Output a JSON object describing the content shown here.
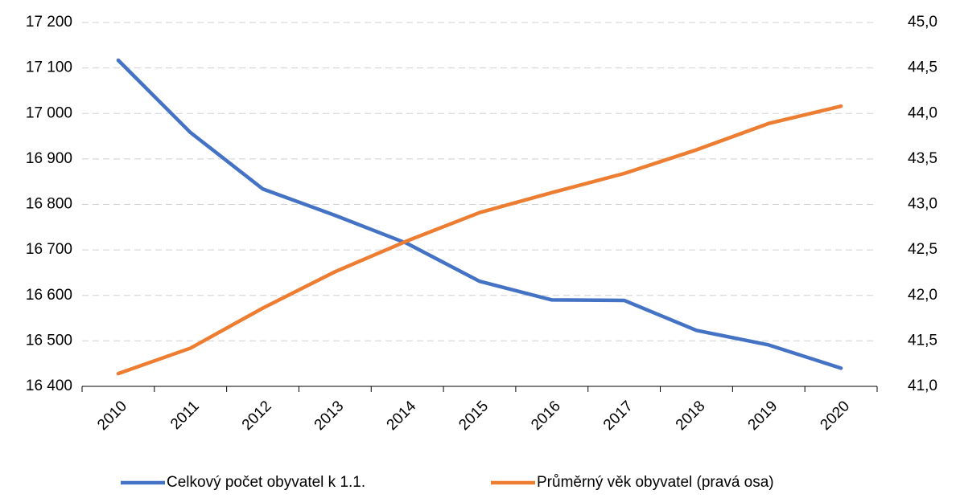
{
  "chart_data": {
    "type": "line",
    "categories": [
      "2010",
      "2011",
      "2012",
      "2013",
      "2014",
      "2015",
      "2016",
      "2017",
      "2018",
      "2019",
      "2020"
    ],
    "series": [
      {
        "name": "Celkový počet obyvatel k 1.1.",
        "color": "#4472c4",
        "values": [
          17117,
          16958,
          16834,
          16776,
          16714,
          16631,
          16590,
          16589,
          16523,
          16491,
          16440
        ]
      },
      {
        "name": "Průměrný věk obyvatel (pravá osa)",
        "color": "#ed7d31",
        "axis": "y2",
        "values": [
          41.14,
          41.42,
          41.86,
          42.26,
          42.6,
          42.91,
          43.13,
          43.34,
          43.6,
          43.89,
          44.08
        ]
      }
    ],
    "ylim": [
      16400,
      17200
    ],
    "yticks": [
      {
        "value": 16400,
        "label": "16 400"
      },
      {
        "value": 16500,
        "label": "16 500"
      },
      {
        "value": 16600,
        "label": "16 600"
      },
      {
        "value": 16700,
        "label": "16 700"
      },
      {
        "value": 16800,
        "label": "16 800"
      },
      {
        "value": 16900,
        "label": "16 900"
      },
      {
        "value": 17000,
        "label": "17 000"
      },
      {
        "value": 17100,
        "label": "17 100"
      },
      {
        "value": 17200,
        "label": "17 200"
      }
    ],
    "y2lim": [
      41,
      45
    ],
    "y2ticks": [
      {
        "value": 41,
        "label": "41,0"
      },
      {
        "value": 41.5,
        "label": "41,5"
      },
      {
        "value": 42,
        "label": "42,0"
      },
      {
        "value": 42.5,
        "label": "42,5"
      },
      {
        "value": 43,
        "label": "43,0"
      },
      {
        "value": 43.5,
        "label": "43,5"
      },
      {
        "value": 44,
        "label": "44,0"
      },
      {
        "value": 44.5,
        "label": "44,5"
      },
      {
        "value": 45,
        "label": "45,0"
      }
    ],
    "grid": true,
    "legend": "bottom"
  }
}
